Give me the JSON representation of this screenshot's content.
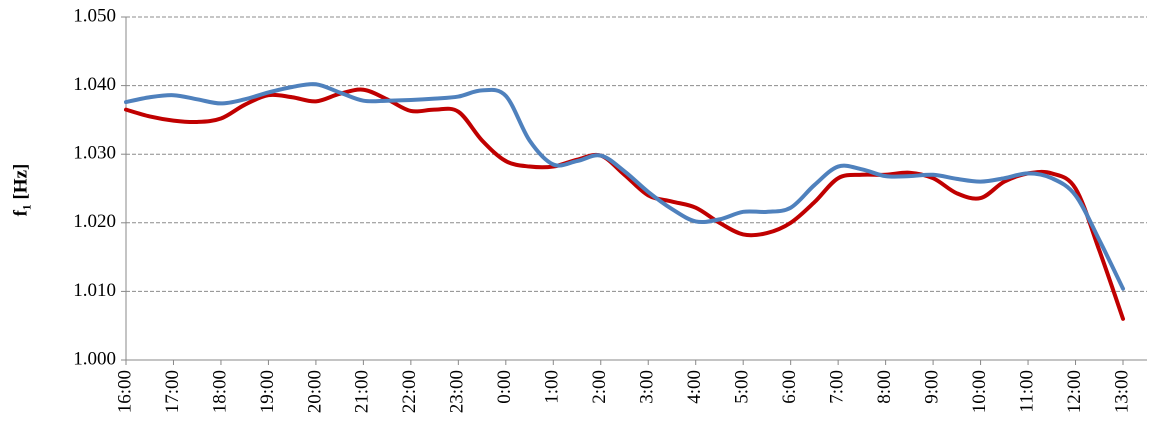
{
  "chart_data": {
    "type": "line",
    "y_label": "f₁ [Hz]",
    "categories": [
      "16:00",
      null,
      "17:00",
      null,
      "18:00",
      null,
      "19:00",
      null,
      "20:00",
      null,
      "21:00",
      null,
      "22:00",
      null,
      "23:00",
      null,
      "0:00",
      null,
      "1:00",
      null,
      "2:00",
      null,
      "3:00",
      null,
      "4:00",
      null,
      "5:00",
      null,
      "6:00",
      null,
      "7:00",
      null,
      "8:00",
      null,
      "9:00",
      null,
      "10:00",
      null,
      "11:00",
      null,
      "12:00",
      null,
      "13:00"
    ],
    "series": [
      {
        "color": "#c00000",
        "values": [
          1.0365,
          1.0355,
          1.0349,
          1.0347,
          1.0352,
          1.0372,
          1.0386,
          1.0383,
          1.0377,
          1.0388,
          1.0394,
          1.038,
          1.0363,
          1.0365,
          1.0362,
          1.032,
          1.029,
          1.0282,
          1.0282,
          1.0292,
          1.0298,
          1.027,
          1.024,
          1.0231,
          1.0222,
          1.02,
          1.0183,
          1.0185,
          1.02,
          1.023,
          1.0265,
          1.027,
          1.027,
          1.0273,
          1.0265,
          1.0243,
          1.0236,
          1.026,
          1.0272,
          1.0272,
          1.025,
          1.016,
          1.006
        ]
      },
      {
        "color": "#4f81bd",
        "values": [
          1.0376,
          1.0383,
          1.0386,
          1.038,
          1.0374,
          1.038,
          1.039,
          1.0398,
          1.0402,
          1.039,
          1.0378,
          1.0378,
          1.0379,
          1.0381,
          1.0384,
          1.0393,
          1.0385,
          1.032,
          1.0285,
          1.029,
          1.0298,
          1.0275,
          1.0245,
          1.022,
          1.0202,
          1.0205,
          1.0216,
          1.0216,
          1.0222,
          1.0255,
          1.0282,
          1.0278,
          1.0268,
          1.0268,
          1.027,
          1.0264,
          1.026,
          1.0265,
          1.0272,
          1.0265,
          1.024,
          1.0175,
          1.0104
        ]
      }
    ],
    "ylim": [
      1.0,
      1.05
    ],
    "yticks": [
      {
        "value": 1.0,
        "label": "1.000"
      },
      {
        "value": 1.01,
        "label": "1.010"
      },
      {
        "value": 1.02,
        "label": "1.020"
      },
      {
        "value": 1.03,
        "label": "1.030"
      },
      {
        "value": 1.04,
        "label": "1.040"
      },
      {
        "value": 1.05,
        "label": "1.050"
      }
    ],
    "grid": true
  }
}
